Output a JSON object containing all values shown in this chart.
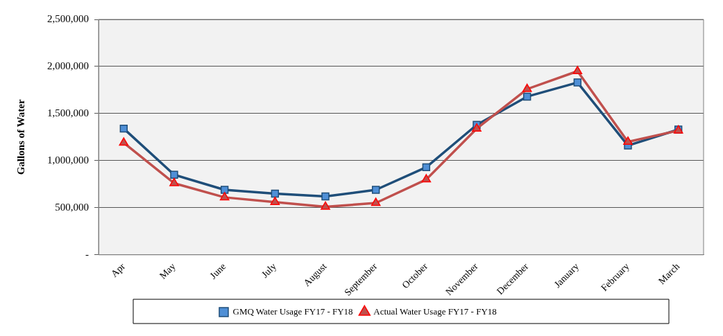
{
  "chart_data": {
    "type": "line",
    "ylabel": "Gallons of Water",
    "categories": [
      "Apr",
      "May",
      "June",
      "July",
      "August",
      "September",
      "October",
      "November",
      "December",
      "January",
      "February",
      "March"
    ],
    "series": [
      {
        "name": "GMQ Water Usage FY17 - FY18",
        "color": "#1f4e79",
        "marker": "square",
        "values": [
          1340000,
          850000,
          690000,
          650000,
          620000,
          690000,
          930000,
          1380000,
          1680000,
          1830000,
          1160000,
          1330000
        ]
      },
      {
        "name": "Actual Water Usage FY17 - FY18",
        "color": "#c0504d",
        "marker": "triangle",
        "values": [
          1190000,
          760000,
          610000,
          560000,
          510000,
          550000,
          800000,
          1340000,
          1760000,
          1950000,
          1200000,
          1320000
        ]
      }
    ],
    "ylim": [
      0,
      2500000
    ],
    "yticks": [
      {
        "value": 0,
        "label": "-"
      },
      {
        "value": 500000,
        "label": "500,000"
      },
      {
        "value": 1000000,
        "label": "1,000,000"
      },
      {
        "value": 1500000,
        "label": "1,500,000"
      },
      {
        "value": 2000000,
        "label": "2,000,000"
      },
      {
        "value": 2500000,
        "label": "2,500,000"
      }
    ],
    "grid": "y",
    "legend": "bottom",
    "line_style": "solid"
  }
}
